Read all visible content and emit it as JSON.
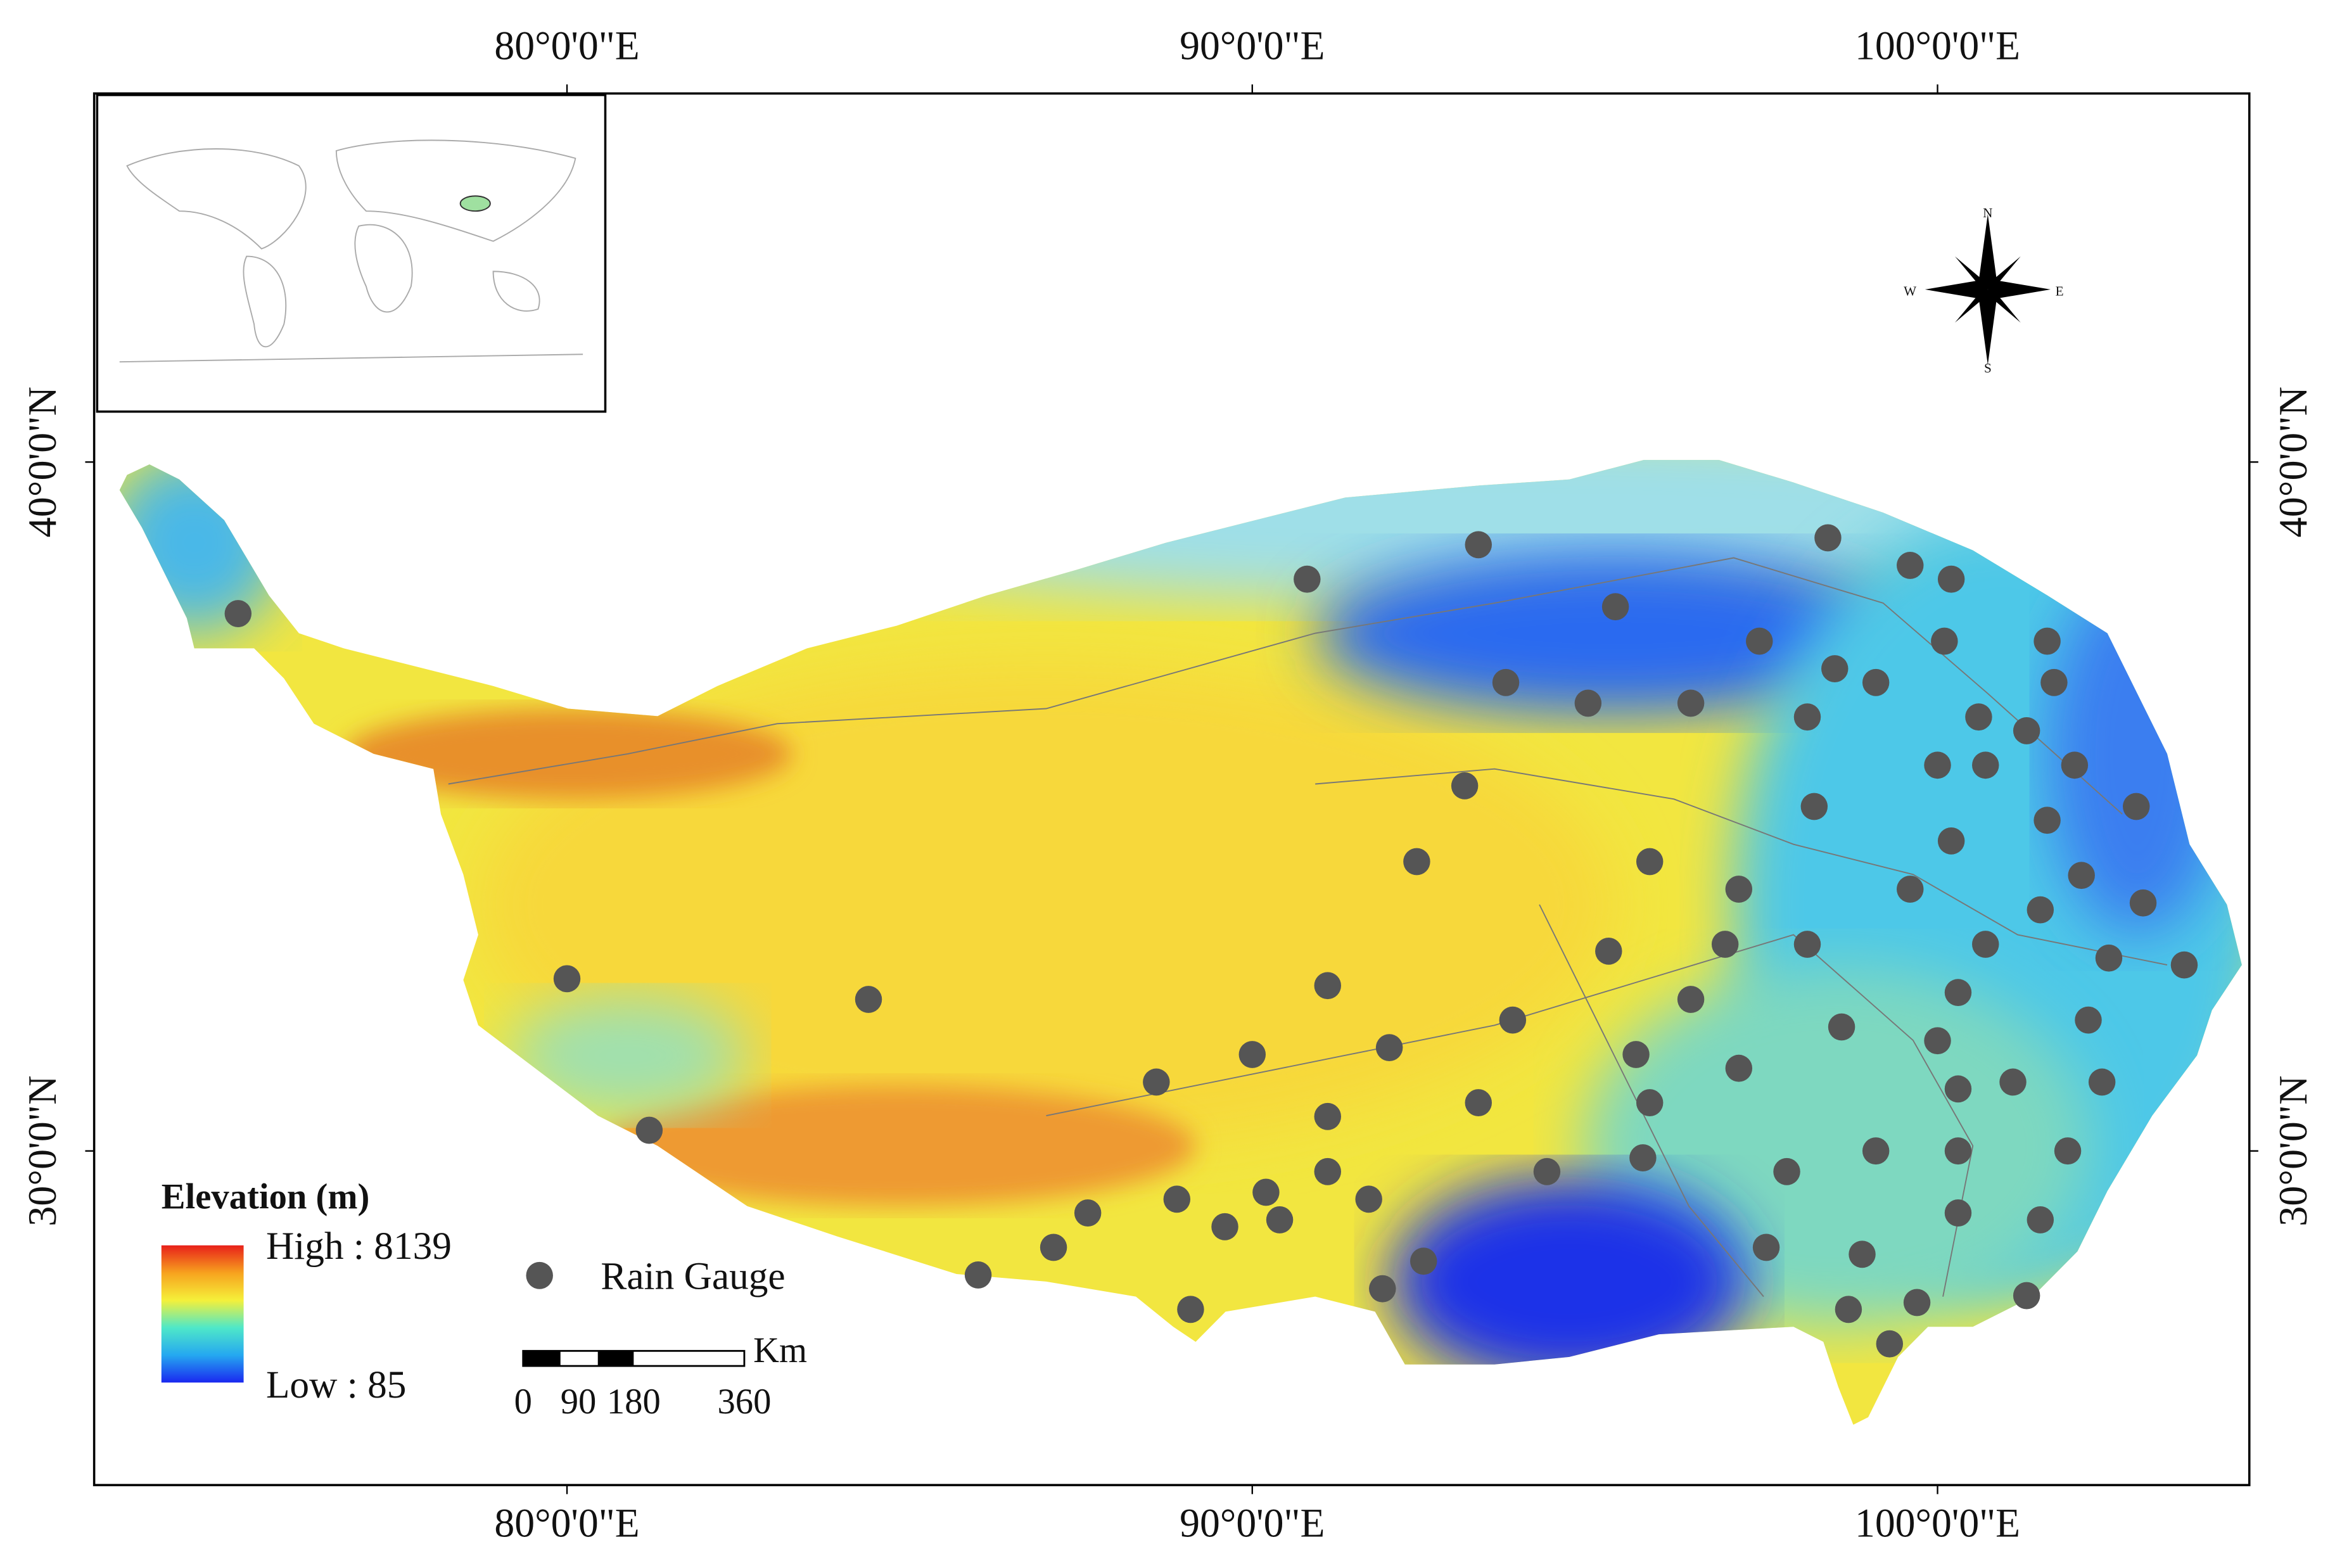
{
  "map": {
    "xlim": [
      73.1,
      104.55
    ],
    "ylim": [
      25.15,
      45.35
    ],
    "xticks": [
      {
        "value": 80,
        "label": "80°0'0\"E"
      },
      {
        "value": 90,
        "label": "90°0'0\"E"
      },
      {
        "value": 100,
        "label": "100°0'0\"E"
      }
    ],
    "yticks": [
      {
        "value": 30,
        "label": "30°0'0\"N"
      },
      {
        "value": 40,
        "label": "40°0'0\"N"
      }
    ],
    "legend": {
      "title": "Elevation (m)",
      "high": "High : 8139",
      "low": "Low : 85",
      "gauge_label": "Rain Gauge",
      "gauge_color": "#555555"
    },
    "scale_bar": {
      "unit": "Km",
      "ticks": [
        0,
        90,
        180,
        360
      ]
    },
    "compass": {
      "n": "N",
      "s": "S",
      "e": "E",
      "w": "W"
    },
    "rain_gauges": [
      [
        75.2,
        37.8
      ],
      [
        80.0,
        32.5
      ],
      [
        84.4,
        32.2
      ],
      [
        81.2,
        30.3
      ],
      [
        90.8,
        38.3
      ],
      [
        93.3,
        38.8
      ],
      [
        95.3,
        37.9
      ],
      [
        93.7,
        36.8
      ],
      [
        94.9,
        36.5
      ],
      [
        96.4,
        36.5
      ],
      [
        98.4,
        38.9
      ],
      [
        99.6,
        38.5
      ],
      [
        100.2,
        38.3
      ],
      [
        97.4,
        37.4
      ],
      [
        100.1,
        37.4
      ],
      [
        101.6,
        37.4
      ],
      [
        98.5,
        37.0
      ],
      [
        99.1,
        36.8
      ],
      [
        101.7,
        36.8
      ],
      [
        98.1,
        36.3
      ],
      [
        100.6,
        36.3
      ],
      [
        101.3,
        36.1
      ],
      [
        93.1,
        35.3
      ],
      [
        100.0,
        35.6
      ],
      [
        100.7,
        35.6
      ],
      [
        102.0,
        35.6
      ],
      [
        98.2,
        35.0
      ],
      [
        102.9,
        35.0
      ],
      [
        100.2,
        34.5
      ],
      [
        101.6,
        34.8
      ],
      [
        92.4,
        34.2
      ],
      [
        95.8,
        34.2
      ],
      [
        97.1,
        33.8
      ],
      [
        102.1,
        34.0
      ],
      [
        99.6,
        33.8
      ],
      [
        103.0,
        33.6
      ],
      [
        101.5,
        33.5
      ],
      [
        95.2,
        32.9
      ],
      [
        96.9,
        33.0
      ],
      [
        98.1,
        33.0
      ],
      [
        100.7,
        33.0
      ],
      [
        102.5,
        32.8
      ],
      [
        103.6,
        32.7
      ],
      [
        91.1,
        32.4
      ],
      [
        96.4,
        32.2
      ],
      [
        100.3,
        32.3
      ],
      [
        93.8,
        31.9
      ],
      [
        98.6,
        31.8
      ],
      [
        102.2,
        31.9
      ],
      [
        90.0,
        31.4
      ],
      [
        92.0,
        31.5
      ],
      [
        95.6,
        31.4
      ],
      [
        100.0,
        31.6
      ],
      [
        88.6,
        31.0
      ],
      [
        95.8,
        30.7
      ],
      [
        97.1,
        31.2
      ],
      [
        100.3,
        30.9
      ],
      [
        101.1,
        31.0
      ],
      [
        102.4,
        31.0
      ],
      [
        93.3,
        30.7
      ],
      [
        91.1,
        30.5
      ],
      [
        99.1,
        30.0
      ],
      [
        95.7,
        29.9
      ],
      [
        100.3,
        30.0
      ],
      [
        101.9,
        30.0
      ],
      [
        94.3,
        29.7
      ],
      [
        91.1,
        29.7
      ],
      [
        97.8,
        29.7
      ],
      [
        90.2,
        29.4
      ],
      [
        88.9,
        29.3
      ],
      [
        91.7,
        29.3
      ],
      [
        87.6,
        29.1
      ],
      [
        100.3,
        29.1
      ],
      [
        101.5,
        29.0
      ],
      [
        89.6,
        28.9
      ],
      [
        90.4,
        29.0
      ],
      [
        87.1,
        28.6
      ],
      [
        97.5,
        28.6
      ],
      [
        92.5,
        28.4
      ],
      [
        98.9,
        28.5
      ],
      [
        86.0,
        28.2
      ],
      [
        91.9,
        28.0
      ],
      [
        101.3,
        27.9
      ],
      [
        89.1,
        27.7
      ],
      [
        98.7,
        27.7
      ],
      [
        99.7,
        27.8
      ],
      [
        99.3,
        27.2
      ]
    ]
  }
}
